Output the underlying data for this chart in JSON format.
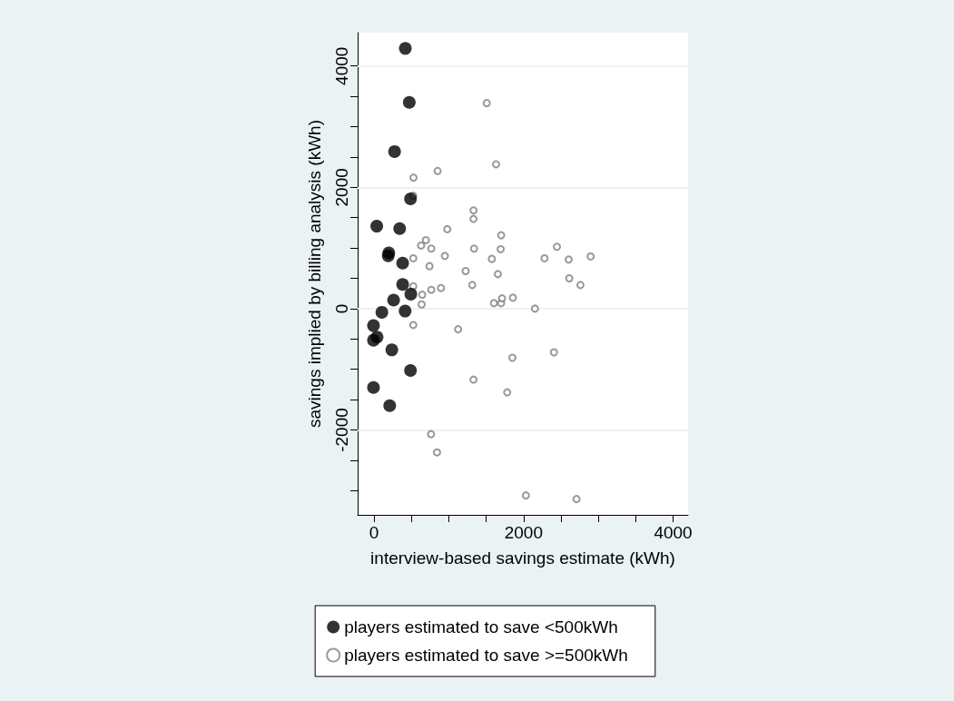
{
  "chart_data": {
    "type": "scatter",
    "xlabel": "interview-based savings estimate (kWh)",
    "ylabel": "savings implied by billing analysis (kWh)",
    "xlim": [
      -220,
      4200
    ],
    "ylim": [
      -3400,
      4550
    ],
    "xticks": [
      0,
      {
        "value": 500,
        "label": null
      },
      {
        "value": 1000,
        "label": null
      },
      {
        "value": 1500,
        "label": null
      },
      2000,
      {
        "value": 2500,
        "label": null
      },
      {
        "value": 3000,
        "label": null
      },
      {
        "value": 3500,
        "label": null
      },
      4000
    ],
    "yticks": [
      {
        "value": -3000,
        "label": null
      },
      {
        "value": -2500,
        "label": null
      },
      -2000,
      {
        "value": -1500,
        "label": null
      },
      {
        "value": -1000,
        "label": null
      },
      {
        "value": -500,
        "label": null
      },
      0,
      {
        "value": 500,
        "label": null
      },
      {
        "value": 1000,
        "label": null
      },
      {
        "value": 1500,
        "label": null
      },
      2000,
      {
        "value": 2500,
        "label": null
      },
      {
        "value": 3000,
        "label": null
      },
      {
        "value": 3500,
        "label": null
      },
      4000
    ],
    "grid": "y",
    "legend": "bottom",
    "marker": "circle",
    "series": [
      {
        "name": "players estimated to save <500kWh",
        "color": "#000000",
        "x": [
          418,
          471,
          274,
          487,
          36,
          342,
          197,
          189,
          382,
          382,
          491,
          261,
          104,
          415,
          -8,
          -8,
          40,
          237,
          487,
          -8,
          209
        ],
        "values": [
          4290,
          3400,
          2590,
          1810,
          1360,
          1320,
          920,
          870,
          750,
          400,
          240,
          140,
          -60,
          -40,
          -280,
          -520,
          -470,
          -680,
          -1020,
          -1300,
          -1600
        ]
      },
      {
        "name": "players estimated to save >=500kWh",
        "color": "#808080",
        "x": [
          1507,
          1632,
          527,
          850,
          524,
          1330,
          1330,
          979,
          1700,
          693,
          629,
          765,
          1337,
          1693,
          524,
          947,
          1575,
          741,
          1225,
          1656,
          1313,
          524,
          644,
          765,
          895,
          636,
          1603,
          1700,
          1712,
          1857,
          524,
          1124,
          1850,
          1330,
          1781,
          762,
          842,
          2152,
          2446,
          2280,
          2603,
          2897,
          2611,
          2760,
          2406,
          2031,
          2708
        ],
        "values": [
          3390,
          2380,
          2160,
          2270,
          1860,
          1620,
          1480,
          1310,
          1210,
          1130,
          1040,
          990,
          990,
          980,
          830,
          870,
          820,
          700,
          620,
          570,
          390,
          370,
          230,
          310,
          340,
          70,
          90,
          90,
          170,
          180,
          -270,
          -340,
          -810,
          -1170,
          -1380,
          -2070,
          -2370,
          0,
          1020,
          830,
          810,
          860,
          500,
          390,
          -720,
          -3080,
          -3140
        ]
      }
    ]
  }
}
